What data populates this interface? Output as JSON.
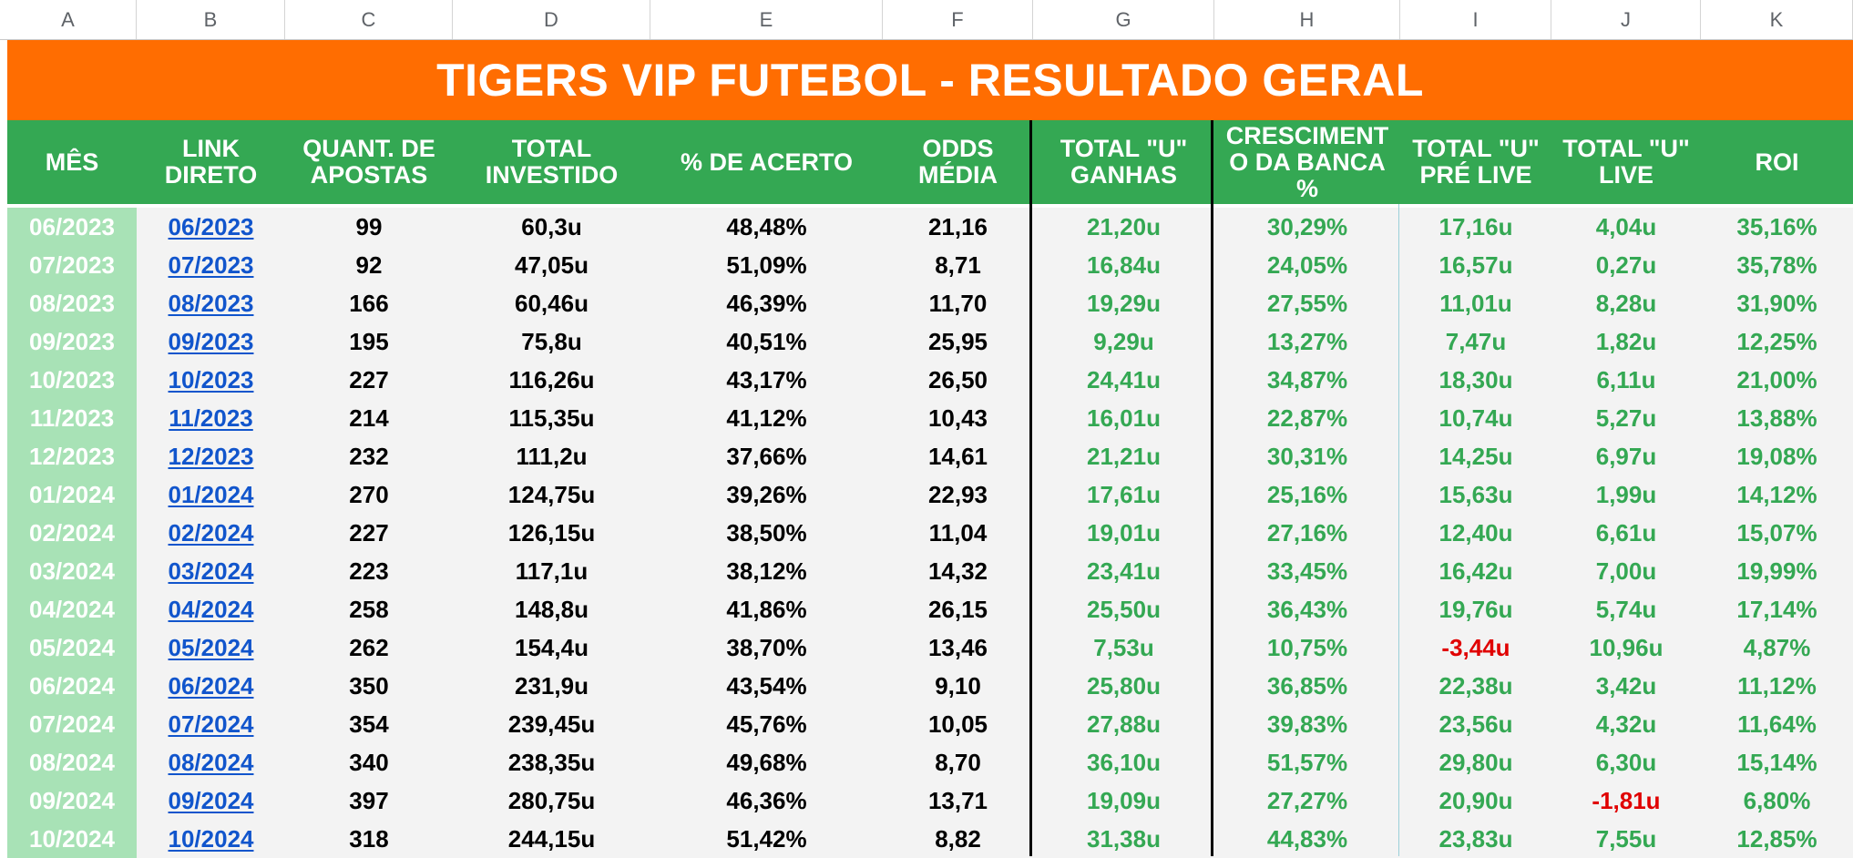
{
  "column_letters": [
    "A",
    "B",
    "C",
    "D",
    "E",
    "F",
    "G",
    "H",
    "I",
    "J",
    "K"
  ],
  "banner_title": "TIGERS VIP FUTEBOL - RESULTADO GERAL",
  "headers": [
    "MÊS",
    "LINK\nDIRETO",
    "QUANT. DE\nAPOSTAS",
    "TOTAL\nINVESTIDO",
    "% DE ACERTO",
    "ODDS\nMÉDIA",
    "TOTAL \"U\"\nGANHAS",
    "CRESCIMENT\nO DA BANCA\n%",
    "TOTAL \"U\"\nPRÉ LIVE",
    "TOTAL \"U\"\nLIVE",
    "ROI"
  ],
  "rows": [
    {
      "mes": "06/2023",
      "link": "06/2023",
      "quant": "99",
      "investido": "60,3u",
      "acerto": "48,48%",
      "odds": "21,16",
      "ganhas": "21,20u",
      "crescimento": "30,29%",
      "prelive": "17,16u",
      "live": "4,04u",
      "roi": "35,16%"
    },
    {
      "mes": "07/2023",
      "link": "07/2023",
      "quant": "92",
      "investido": "47,05u",
      "acerto": "51,09%",
      "odds": "8,71",
      "ganhas": "16,84u",
      "crescimento": "24,05%",
      "prelive": "16,57u",
      "live": "0,27u",
      "roi": "35,78%"
    },
    {
      "mes": "08/2023",
      "link": "08/2023",
      "quant": "166",
      "investido": "60,46u",
      "acerto": "46,39%",
      "odds": "11,70",
      "ganhas": "19,29u",
      "crescimento": "27,55%",
      "prelive": "11,01u",
      "live": "8,28u",
      "roi": "31,90%"
    },
    {
      "mes": "09/2023",
      "link": "09/2023",
      "quant": "195",
      "investido": "75,8u",
      "acerto": "40,51%",
      "odds": "25,95",
      "ganhas": "9,29u",
      "crescimento": "13,27%",
      "prelive": "7,47u",
      "live": "1,82u",
      "roi": "12,25%"
    },
    {
      "mes": "10/2023",
      "link": "10/2023",
      "quant": "227",
      "investido": "116,26u",
      "acerto": "43,17%",
      "odds": "26,50",
      "ganhas": "24,41u",
      "crescimento": "34,87%",
      "prelive": "18,30u",
      "live": "6,11u",
      "roi": "21,00%"
    },
    {
      "mes": "11/2023",
      "link": "11/2023",
      "quant": "214",
      "investido": "115,35u",
      "acerto": "41,12%",
      "odds": "10,43",
      "ganhas": "16,01u",
      "crescimento": "22,87%",
      "prelive": "10,74u",
      "live": "5,27u",
      "roi": "13,88%"
    },
    {
      "mes": "12/2023",
      "link": "12/2023",
      "quant": "232",
      "investido": "111,2u",
      "acerto": "37,66%",
      "odds": "14,61",
      "ganhas": "21,21u",
      "crescimento": "30,31%",
      "prelive": "14,25u",
      "live": "6,97u",
      "roi": "19,08%"
    },
    {
      "mes": "01/2024",
      "link": "01/2024",
      "quant": "270",
      "investido": "124,75u",
      "acerto": "39,26%",
      "odds": "22,93",
      "ganhas": "17,61u",
      "crescimento": "25,16%",
      "prelive": "15,63u",
      "live": "1,99u",
      "roi": "14,12%"
    },
    {
      "mes": "02/2024",
      "link": "02/2024",
      "quant": "227",
      "investido": "126,15u",
      "acerto": "38,50%",
      "odds": "11,04",
      "ganhas": "19,01u",
      "crescimento": "27,16%",
      "prelive": "12,40u",
      "live": "6,61u",
      "roi": "15,07%"
    },
    {
      "mes": "03/2024",
      "link": "03/2024",
      "quant": "223",
      "investido": "117,1u",
      "acerto": "38,12%",
      "odds": "14,32",
      "ganhas": "23,41u",
      "crescimento": "33,45%",
      "prelive": "16,42u",
      "live": "7,00u",
      "roi": "19,99%"
    },
    {
      "mes": "04/2024",
      "link": "04/2024",
      "quant": "258",
      "investido": "148,8u",
      "acerto": "41,86%",
      "odds": "26,15",
      "ganhas": "25,50u",
      "crescimento": "36,43%",
      "prelive": "19,76u",
      "live": "5,74u",
      "roi": "17,14%"
    },
    {
      "mes": "05/2024",
      "link": "05/2024",
      "quant": "262",
      "investido": "154,4u",
      "acerto": "38,70%",
      "odds": "13,46",
      "ganhas": "7,53u",
      "crescimento": "10,75%",
      "prelive": "-3,44u",
      "live": "10,96u",
      "roi": "4,87%"
    },
    {
      "mes": "06/2024",
      "link": "06/2024",
      "quant": "350",
      "investido": "231,9u",
      "acerto": "43,54%",
      "odds": "9,10",
      "ganhas": "25,80u",
      "crescimento": "36,85%",
      "prelive": "22,38u",
      "live": "3,42u",
      "roi": "11,12%"
    },
    {
      "mes": "07/2024",
      "link": "07/2024",
      "quant": "354",
      "investido": "239,45u",
      "acerto": "45,76%",
      "odds": "10,05",
      "ganhas": "27,88u",
      "crescimento": "39,83%",
      "prelive": "23,56u",
      "live": "4,32u",
      "roi": "11,64%"
    },
    {
      "mes": "08/2024",
      "link": "08/2024",
      "quant": "340",
      "investido": "238,35u",
      "acerto": "49,68%",
      "odds": "8,70",
      "ganhas": "36,10u",
      "crescimento": "51,57%",
      "prelive": "29,80u",
      "live": "6,30u",
      "roi": "15,14%"
    },
    {
      "mes": "09/2024",
      "link": "09/2024",
      "quant": "397",
      "investido": "280,75u",
      "acerto": "46,36%",
      "odds": "13,71",
      "ganhas": "19,09u",
      "crescimento": "27,27%",
      "prelive": "20,90u",
      "live": "-1,81u",
      "roi": "6,80%"
    },
    {
      "mes": "10/2024",
      "link": "10/2024",
      "quant": "318",
      "investido": "244,15u",
      "acerto": "51,42%",
      "odds": "8,82",
      "ganhas": "31,38u",
      "crescimento": "44,83%",
      "prelive": "23,83u",
      "live": "7,55u",
      "roi": "12,85%"
    }
  ],
  "colors": {
    "banner": "#ff6d01",
    "header": "#34a853",
    "month_cell": "#a8e2b6",
    "positive": "#34a853",
    "negative": "#e00000",
    "link": "#1155cc",
    "cell_bg": "#f3f3f3"
  }
}
